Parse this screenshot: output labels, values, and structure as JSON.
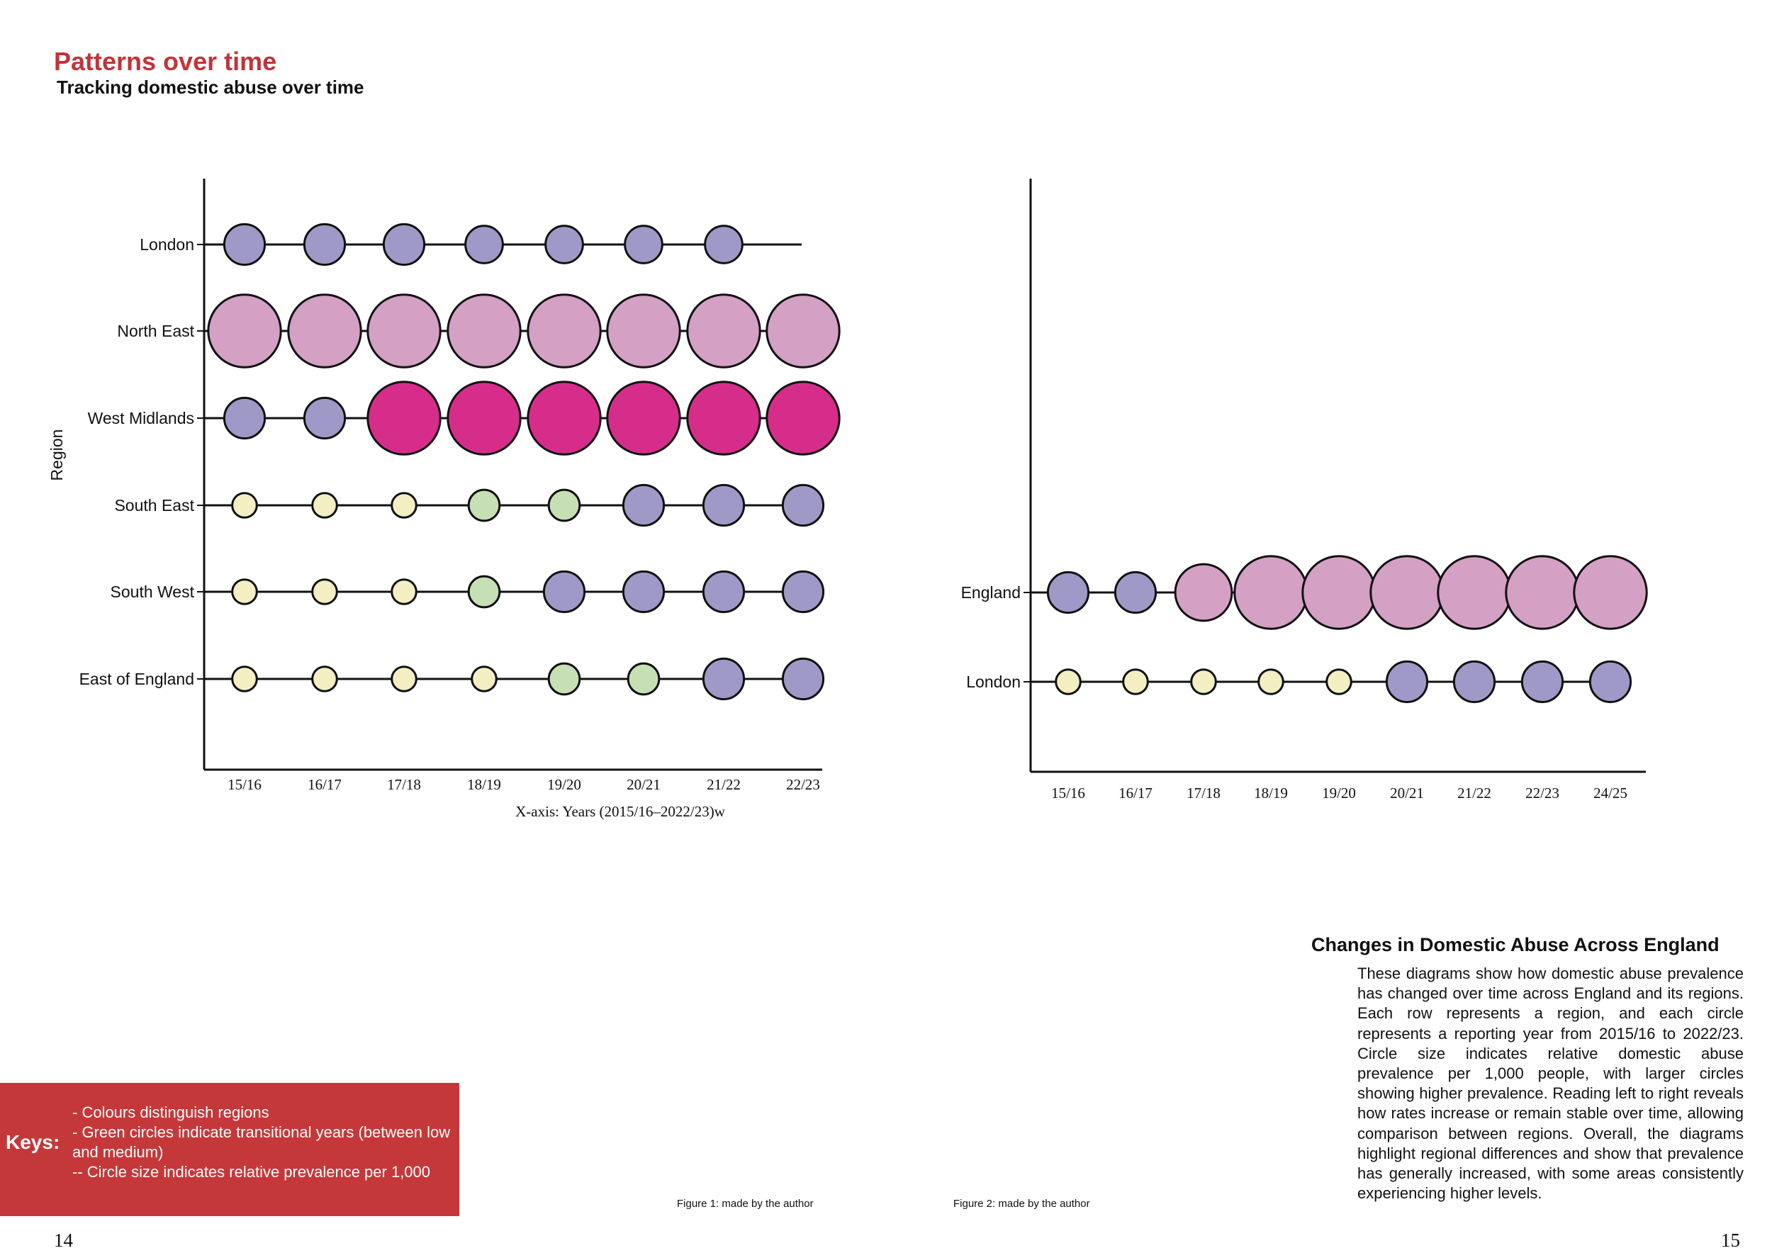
{
  "header": {
    "title": "Patterns over time",
    "subtitle": "Tracking domestic abuse over time"
  },
  "legend": {
    "colors": {
      "purple": "#9f99c8",
      "pink": "#d4a0c4",
      "magenta": "#d62d8a",
      "yellow": "#f4efc3",
      "green": "#c7dfb4"
    }
  },
  "chart_data": [
    {
      "type": "scatter",
      "variant": "bubble-timeline",
      "title": "",
      "xlabel": "X-axis: Years (2015/16–2022/23)w",
      "ylabel": "Region",
      "categories": [
        "15/16",
        "16/17",
        "17/18",
        "18/19",
        "19/20",
        "20/21",
        "21/22",
        "22/23"
      ],
      "series": [
        {
          "name": "London",
          "sizes": [
            2,
            2,
            2,
            1.8,
            1.8,
            1.8,
            1.8
          ],
          "colors": [
            "purple",
            "purple",
            "purple",
            "purple",
            "purple",
            "purple",
            "purple"
          ],
          "line_extends_to_last": true
        },
        {
          "name": "North East",
          "sizes": [
            4,
            4,
            4,
            4,
            4,
            4,
            4,
            4
          ],
          "colors": [
            "pink",
            "pink",
            "pink",
            "pink",
            "pink",
            "pink",
            "pink",
            "pink"
          ]
        },
        {
          "name": "West Midlands",
          "sizes": [
            2,
            2,
            4,
            4,
            4,
            4,
            4,
            4
          ],
          "colors": [
            "purple",
            "purple",
            "magenta",
            "magenta",
            "magenta",
            "magenta",
            "magenta",
            "magenta"
          ]
        },
        {
          "name": "South East",
          "sizes": [
            1,
            1,
            1,
            1.4,
            1.4,
            2,
            2,
            2
          ],
          "colors": [
            "yellow",
            "yellow",
            "yellow",
            "green",
            "green",
            "purple",
            "purple",
            "purple"
          ]
        },
        {
          "name": "South West",
          "sizes": [
            1,
            1,
            1,
            1.4,
            2,
            2,
            2,
            2
          ],
          "colors": [
            "yellow",
            "yellow",
            "yellow",
            "green",
            "purple",
            "purple",
            "purple",
            "purple"
          ]
        },
        {
          "name": "East of England",
          "sizes": [
            1,
            1,
            1,
            1,
            1.4,
            1.4,
            2,
            2
          ],
          "colors": [
            "yellow",
            "yellow",
            "yellow",
            "yellow",
            "green",
            "green",
            "purple",
            "purple"
          ]
        }
      ],
      "caption": "Figure 1: made by the author"
    },
    {
      "type": "scatter",
      "variant": "bubble-timeline",
      "title": "",
      "xlabel": "",
      "ylabel": "",
      "categories": [
        "15/16",
        "16/17",
        "17/18",
        "18/19",
        "19/20",
        "20/21",
        "21/22",
        "22/23",
        "24/25"
      ],
      "series": [
        {
          "name": "England",
          "sizes": [
            2,
            2,
            3,
            4,
            4,
            4,
            4,
            4,
            4
          ],
          "colors": [
            "purple",
            "purple",
            "pink",
            "pink",
            "pink",
            "pink",
            "pink",
            "pink",
            "pink"
          ]
        },
        {
          "name": "London",
          "sizes": [
            1,
            1,
            1,
            1,
            1,
            2,
            2,
            2,
            2
          ],
          "colors": [
            "yellow",
            "yellow",
            "yellow",
            "yellow",
            "yellow",
            "purple",
            "purple",
            "purple",
            "purple"
          ]
        }
      ],
      "caption": "Figure 2: made by the author"
    }
  ],
  "keys": {
    "title": "Keys:",
    "items": [
      "- Colours distinguish regions",
      "- Green circles indicate transitional years (between low and medium)",
      "-- Circle size indicates relative prevalence per 1,000"
    ]
  },
  "sidebar": {
    "heading": "Changes in Domestic Abuse Across England",
    "body": "These diagrams show how domestic abuse prevalence has changed over time across England and its regions. Each row represents a region, and each circle represents a reporting year from 2015/16 to 2022/23. Circle size indicates relative domestic abuse prevalence per 1,000 people, with larger circles showing higher prevalence. Reading left to right reveals how rates increase or remain stable over time, allowing comparison between regions. Overall, the diagrams highlight regional differences and show that prevalence has generally increased, with some areas consistently experiencing higher levels."
  },
  "page_numbers": {
    "left": "14",
    "right": "15"
  }
}
